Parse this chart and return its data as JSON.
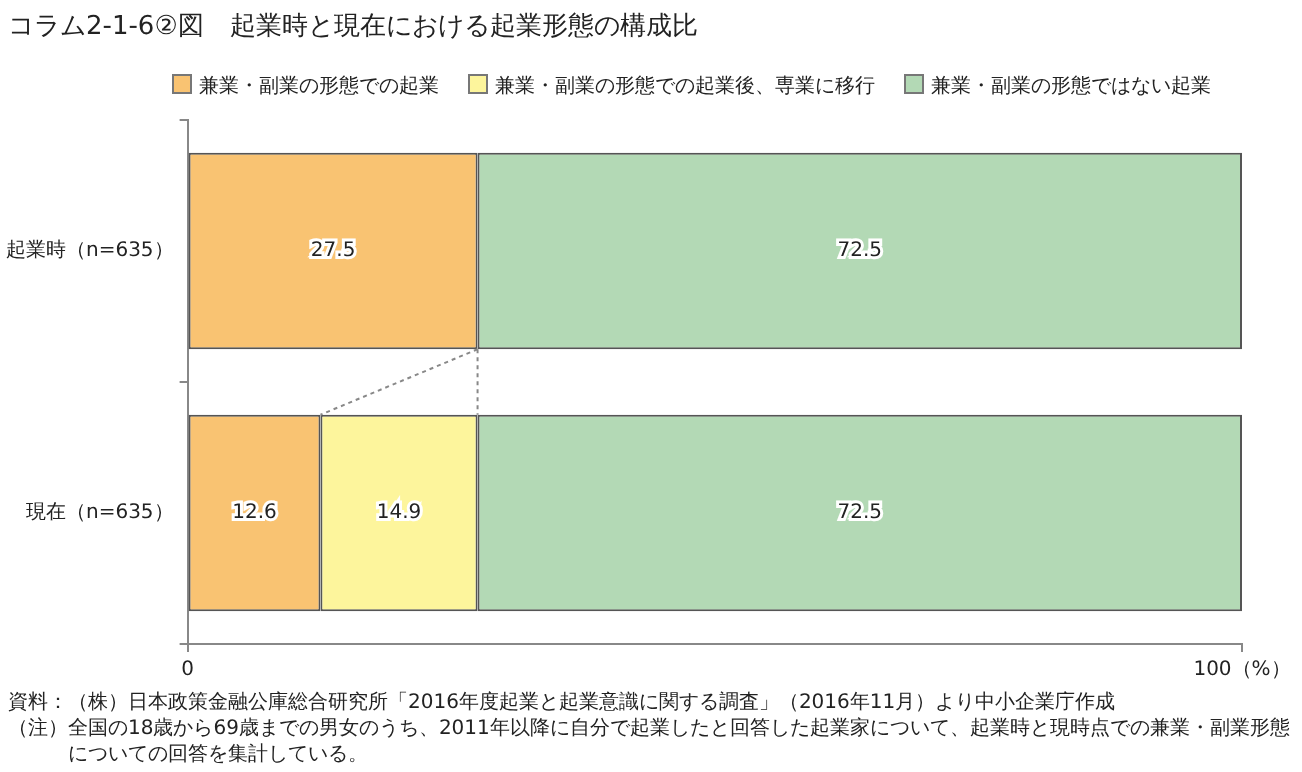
{
  "chart_data": {
    "type": "bar",
    "orientation": "horizontal",
    "stacked": true,
    "title": "コラム2-1-6②図　起業時と現在における起業形態の構成比",
    "categories": [
      "起業時（n=635）",
      "現在（n=635）"
    ],
    "series": [
      {
        "name": "兼業・副業の形態での起業",
        "color": "#f9c372",
        "values": [
          27.5,
          12.6
        ]
      },
      {
        "name": "兼業・副業の形態での起業後、専業に移行",
        "color": "#fdf59c",
        "values": [
          null,
          14.9
        ]
      },
      {
        "name": "兼業・副業の形態ではない起業",
        "color": "#b3d9b5",
        "values": [
          72.5,
          72.5
        ]
      }
    ],
    "xlim": [
      0,
      100
    ],
    "xticks": [
      0,
      {
        "value": 100,
        "label": "100（%）"
      }
    ],
    "data_labels": true,
    "grid": false,
    "legend": "top",
    "annotations": [
      "資料：（株）日本政策金融公庫総合研究所「2016年度起業と起業意識に関する調査」（2016年11月）より中小企業庁作成",
      "（注）全国の18歳から69歳までの男女のうち、2011年以降に自分で起業したと回答した起業家について、起業時と現時点での兼業・副業形態についての回答を集計している。"
    ]
  }
}
